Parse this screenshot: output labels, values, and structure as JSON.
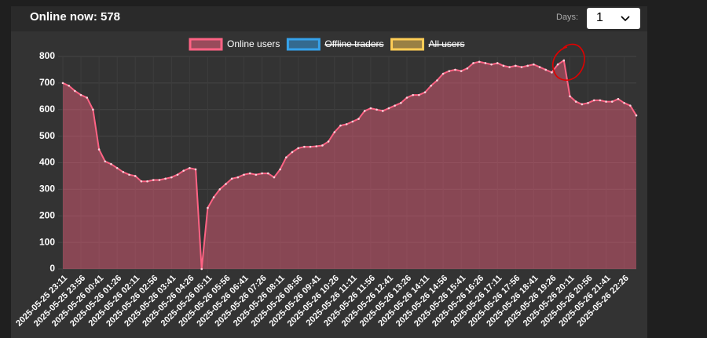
{
  "header": {
    "title": "Online now: 578",
    "days_label": "Days:",
    "days_value": "1"
  },
  "chart_data": {
    "type": "line",
    "categories": [
      "2025-05-25 23:11",
      null,
      null,
      "2025-05-25 23:56",
      null,
      null,
      "2025-05-26 00:41",
      null,
      null,
      "2025-05-26 01:26",
      null,
      null,
      "2025-05-26 02:11",
      null,
      null,
      "2025-05-26 02:56",
      null,
      null,
      "2025-05-26 03:41",
      null,
      null,
      "2025-05-26 04:26",
      null,
      null,
      "2025-05-26 05:11",
      null,
      null,
      "2025-05-26 05:56",
      null,
      null,
      "2025-05-26 06:41",
      null,
      null,
      "2025-05-26 07:26",
      null,
      null,
      "2025-05-26 08:11",
      null,
      null,
      "2025-05-26 08:56",
      null,
      null,
      "2025-05-26 09:41",
      null,
      null,
      "2025-05-26 10:26",
      null,
      null,
      "2025-05-26 11:11",
      null,
      null,
      "2025-05-26 11:56",
      null,
      null,
      "2025-05-26 12:41",
      null,
      null,
      "2025-05-26 13:26",
      null,
      null,
      "2025-05-26 14:11",
      null,
      null,
      "2025-05-26 14:56",
      null,
      null,
      "2025-05-26 15:41",
      null,
      null,
      "2025-05-26 16:26",
      null,
      null,
      "2025-05-26 17:11",
      null,
      null,
      "2025-05-26 17:56",
      null,
      null,
      "2025-05-26 18:41",
      null,
      null,
      "2025-05-26 19:26",
      null,
      null,
      "2025-05-26 20:11",
      null,
      null,
      "2025-05-26 20:56",
      null,
      null,
      "2025-05-26 21:41",
      null,
      null,
      "2025-05-26 22:26",
      null,
      null
    ],
    "series": [
      {
        "name": "Online users",
        "color": "#ff6384",
        "values": [
          700,
          690,
          670,
          655,
          645,
          600,
          450,
          405,
          395,
          380,
          365,
          355,
          350,
          330,
          330,
          335,
          335,
          340,
          345,
          355,
          370,
          380,
          375,
          0,
          230,
          270,
          300,
          320,
          340,
          345,
          355,
          360,
          355,
          360,
          360,
          345,
          375,
          420,
          440,
          455,
          460,
          460,
          462,
          465,
          480,
          515,
          540,
          545,
          555,
          565,
          595,
          605,
          600,
          595,
          605,
          615,
          625,
          645,
          655,
          655,
          665,
          690,
          710,
          735,
          745,
          750,
          745,
          755,
          775,
          780,
          775,
          770,
          775,
          765,
          760,
          765,
          760,
          765,
          770,
          760,
          750,
          740,
          770,
          785,
          650,
          630,
          620,
          625,
          635,
          635,
          630,
          630,
          640,
          625,
          615,
          578
        ]
      },
      {
        "name": "Offline traders",
        "color": "#36a2eb",
        "hidden": true
      },
      {
        "name": "All users",
        "color": "#ffcd56",
        "hidden": true
      }
    ],
    "ylim": [
      0,
      800
    ],
    "yticks": [
      0,
      100,
      200,
      300,
      400,
      500,
      600,
      700,
      800
    ],
    "grid": true
  }
}
